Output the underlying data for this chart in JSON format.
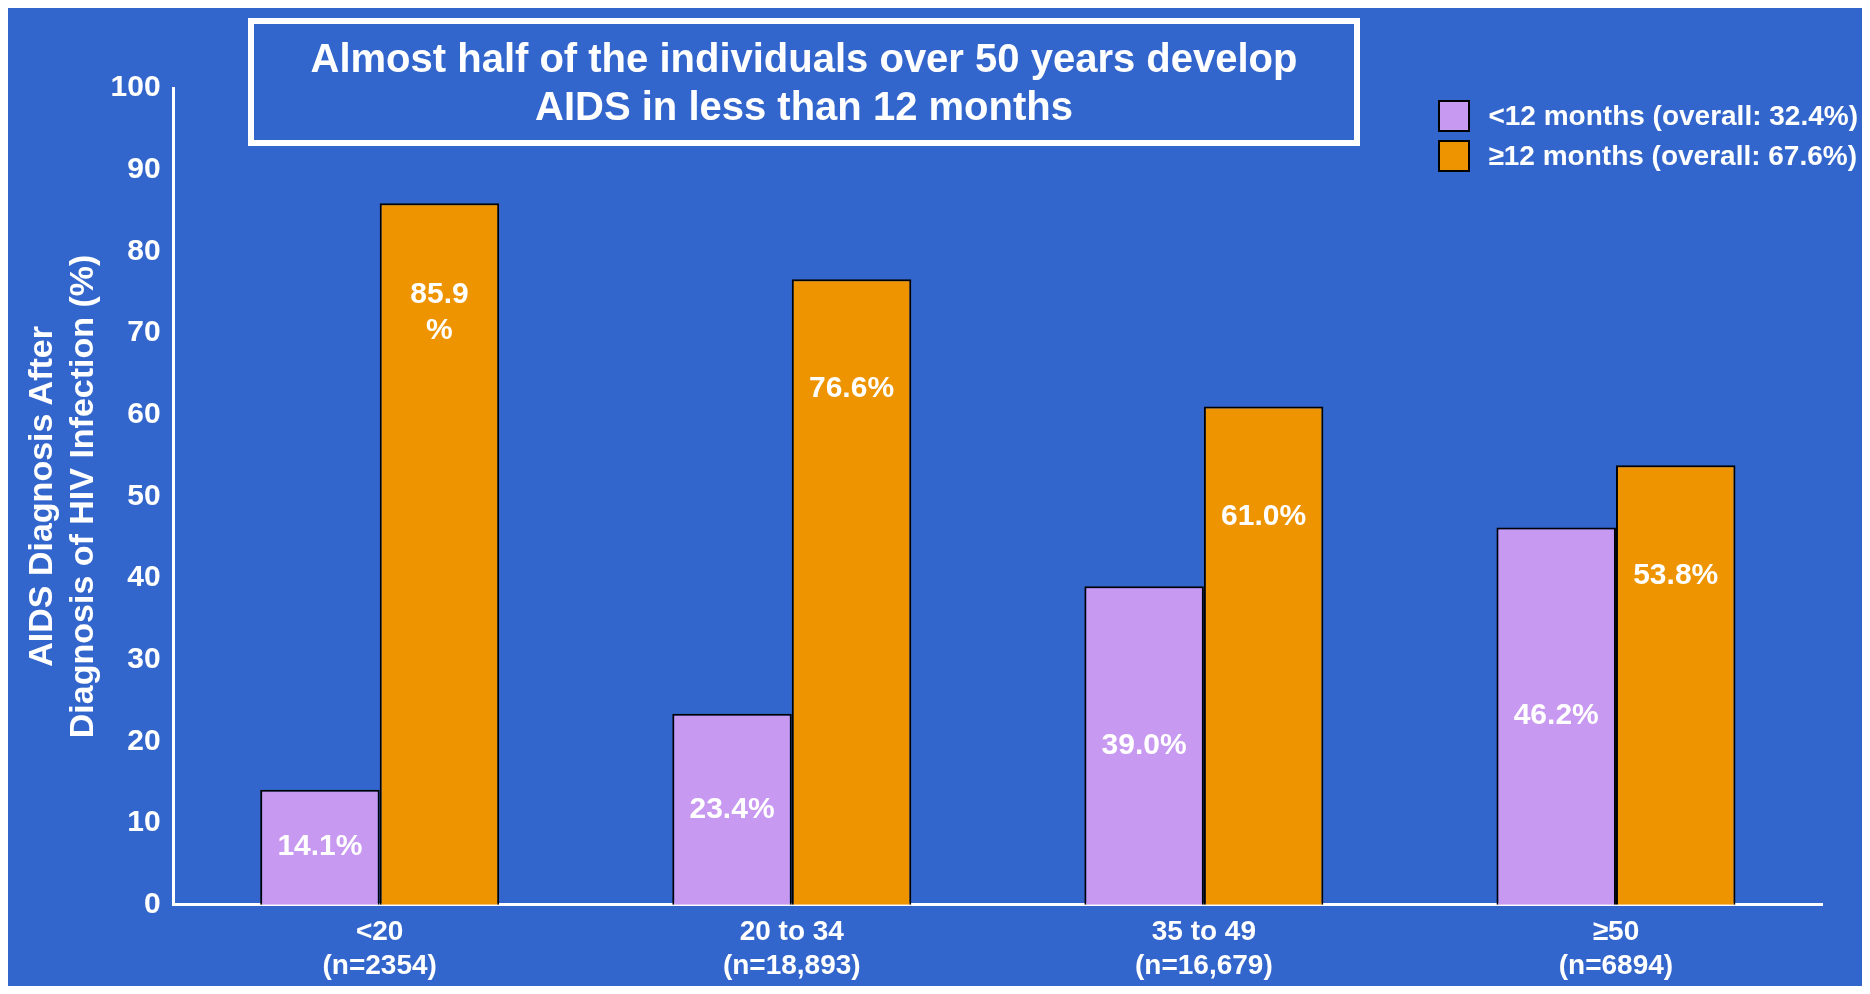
{
  "chart_data": {
    "type": "bar",
    "title": "Almost half of the individuals over 50 years develop AIDS in less than 12 months",
    "categories": [
      "<20\n(n=2354)",
      "20 to 34\n(n=18,893)",
      "35 to 49\n(n=16,679)",
      "≥50\n(n=6894)"
    ],
    "series": [
      {
        "name": "<12 months (overall: 32.4%)",
        "color": "#c899f0",
        "values": [
          14.1,
          23.4,
          39.0,
          46.2
        ],
        "value_labels": [
          "14.1%",
          "23.4%",
          "39.0%",
          "46.2%"
        ]
      },
      {
        "name": "≥12 months (overall: 67.6%)",
        "color": "#ee9400",
        "values": [
          85.9,
          76.6,
          61.0,
          53.8
        ],
        "value_labels": [
          "85.9\n%",
          "76.6%",
          "61.0%",
          "53.8%"
        ]
      }
    ],
    "ylabel": "AIDS Diagnosis After\nDiagnosis of HIV Infection (%)",
    "ylim": [
      0,
      100
    ],
    "yticks": [
      0,
      10,
      20,
      30,
      40,
      50,
      60,
      70,
      80,
      90,
      100
    ],
    "grid": false,
    "legend": "top right"
  }
}
